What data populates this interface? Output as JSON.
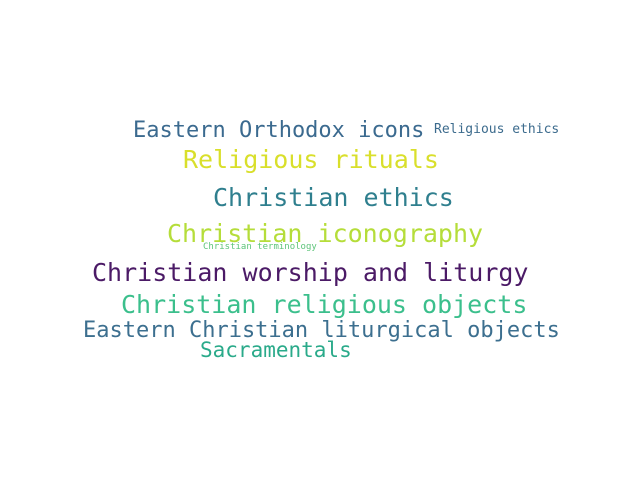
{
  "words": [
    {
      "text": "Eastern Orthodox icons",
      "color": "#3b6a8f"
    },
    {
      "text": "Religious ethics",
      "color": "#3c6b8d"
    },
    {
      "text": "Religious rituals",
      "color": "#d9df2b"
    },
    {
      "text": "Christian ethics",
      "color": "#2f7f8e"
    },
    {
      "text": "Christian iconography",
      "color": "#b5dd3a"
    },
    {
      "text": "Christian terminology",
      "color": "#5ec47a"
    },
    {
      "text": "Christian worship and liturgy",
      "color": "#4b1a66"
    },
    {
      "text": "Christian religious objects",
      "color": "#3bbf8c"
    },
    {
      "text": "Eastern Christian liturgical objects",
      "color": "#3c6f8f"
    },
    {
      "text": "Sacramentals",
      "color": "#2aaa8a"
    }
  ]
}
